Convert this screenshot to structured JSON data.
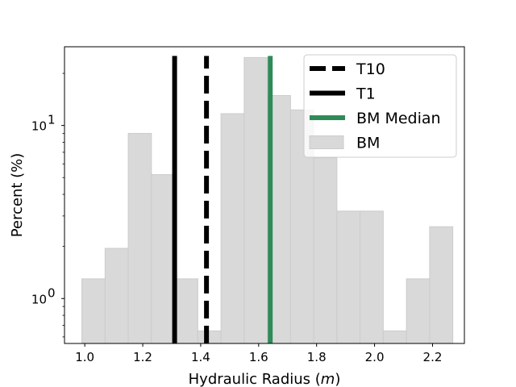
{
  "chart_data": {
    "type": "bar",
    "title": "",
    "xlabel": "Hydraulic Radius (",
    "xlabel_var": "m",
    "xlabel_close": ")",
    "ylabel": "Percent (%)",
    "yscale": "log",
    "xlim": [
      0.93,
      2.31
    ],
    "ylim": [
      0.55,
      28.5
    ],
    "xticks": [
      1.0,
      1.2,
      1.4,
      1.6,
      1.8,
      2.0,
      2.2
    ],
    "xtick_labels": [
      "1.0",
      "1.2",
      "1.4",
      "1.6",
      "1.8",
      "2.0",
      "2.2"
    ],
    "yticks": [
      1,
      10
    ],
    "ytick_base": "10",
    "ytick_exponents": [
      "0",
      "1"
    ],
    "histogram": {
      "name": "BM",
      "color": "#d9d9d9",
      "edge_color": "#cccccc",
      "bin_edges": [
        0.99,
        1.07,
        1.15,
        1.23,
        1.31,
        1.39,
        1.47,
        1.55,
        1.63,
        1.71,
        1.79,
        1.87,
        1.95,
        2.03,
        2.11,
        2.19,
        2.27
      ],
      "values": [
        1.3,
        1.95,
        9.0,
        5.2,
        1.3,
        0.65,
        11.7,
        24.7,
        14.9,
        12.3,
        6.5,
        3.2,
        3.2,
        0.65,
        1.3,
        2.6
      ]
    },
    "vlines": [
      {
        "name": "T10",
        "x": 1.42,
        "color": "#000000",
        "style": "dashed"
      },
      {
        "name": "T1",
        "x": 1.31,
        "color": "#000000",
        "style": "solid"
      },
      {
        "name": "BM Median",
        "x": 1.64,
        "color": "#2e8b57",
        "style": "solid"
      }
    ],
    "legend": {
      "position": "top-right",
      "entries": [
        {
          "label": "T10",
          "kind": "dashed",
          "color": "#000000"
        },
        {
          "label": "T1",
          "kind": "solid",
          "color": "#000000"
        },
        {
          "label": "BM Median",
          "kind": "solid",
          "color": "#2e8b57"
        },
        {
          "label": "BM",
          "kind": "patch",
          "color": "#d9d9d9"
        }
      ]
    }
  }
}
